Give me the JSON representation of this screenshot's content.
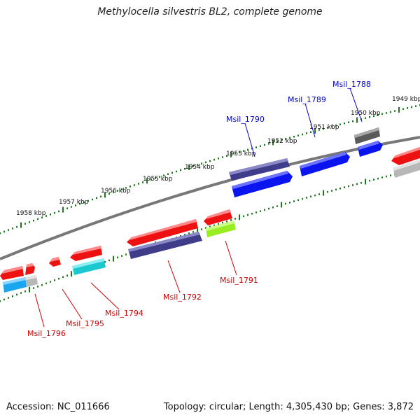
{
  "title": "Methylocella silvestris BL2, complete genome",
  "footer": {
    "accession": "Accession: NC_011666",
    "summary": "Topology: circular; Length: 4,305,430 bp; Genes: 3,872"
  },
  "kbp_ticks": [
    {
      "label": "1958 kbp",
      "major": true
    },
    {
      "label": "1957 kbp",
      "major": true
    },
    {
      "label": "1956 kbp",
      "major": true
    },
    {
      "label": "1955 kbp",
      "major": true
    },
    {
      "label": "1954 kbp",
      "major": true
    },
    {
      "label": "1953 kbp",
      "major": true
    },
    {
      "label": "1952 kbp",
      "major": true
    },
    {
      "label": "1951 kbp",
      "major": true
    },
    {
      "label": "1950 kbp",
      "major": true
    },
    {
      "label": "1949 kbp",
      "major": true
    }
  ],
  "gene_labels": {
    "top": [
      "Msil_1790",
      "Msil_1789",
      "Msil_1788"
    ],
    "bottom": [
      "Msil_1796",
      "Msil_1795",
      "Msil_1794",
      "Msil_1792",
      "Msil_1791"
    ]
  },
  "colors": {
    "forward_label": "#0000cc",
    "reverse_label": "#cc0000",
    "tick": "#1a7a1a",
    "backbone": "#777777",
    "red": "#ee1111",
    "blue": "#0a14ee",
    "navy": "#3f3d8a",
    "grey": "#5a5a5a",
    "cyan": "#1cc8d0",
    "skyblue": "#1aa6ee",
    "lightgrey": "#b8b8b8",
    "lime": "#99ee22"
  }
}
